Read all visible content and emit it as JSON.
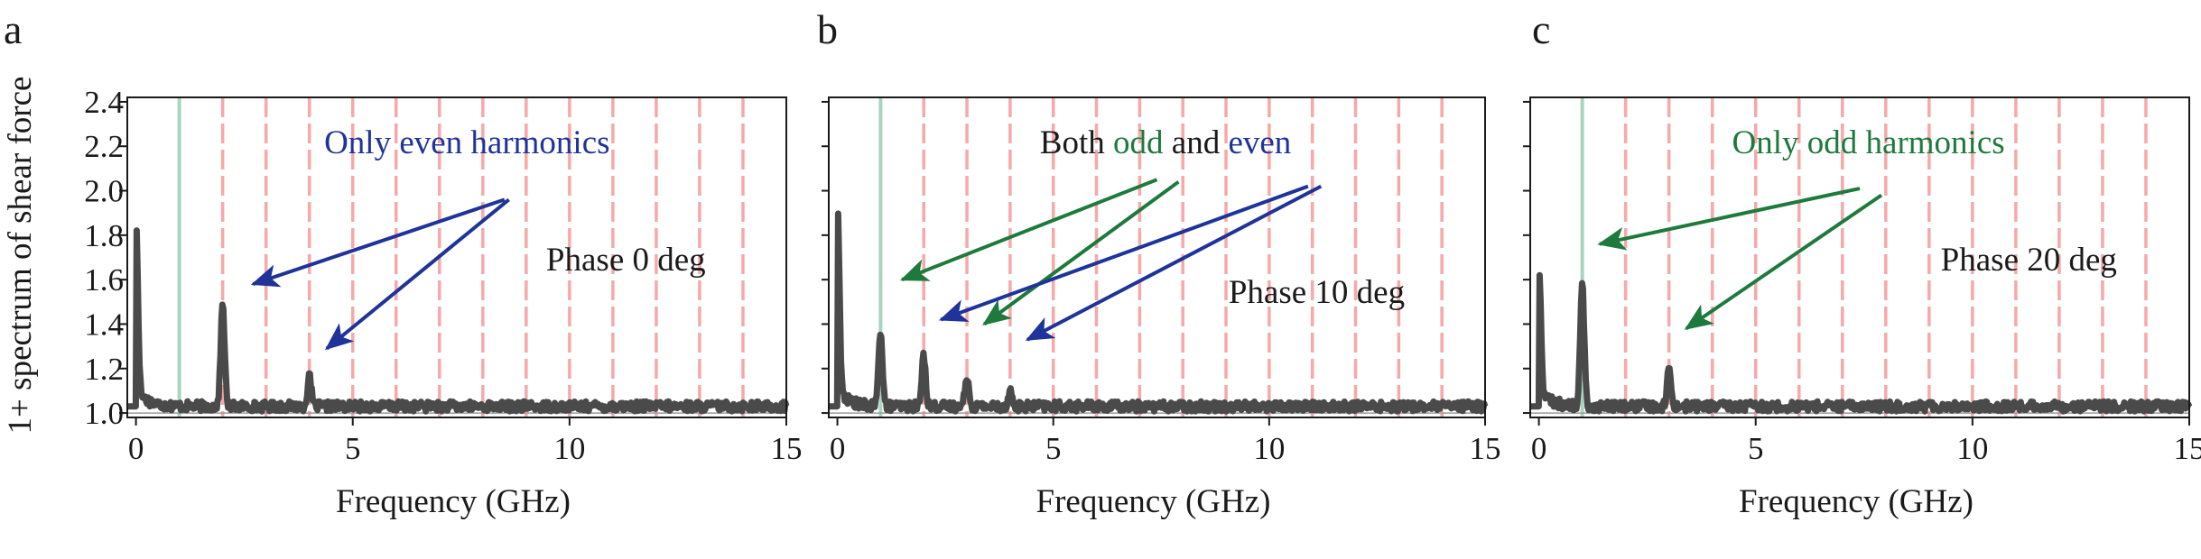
{
  "figure": {
    "y_axis_title": "1+ spectrum of shear force",
    "harmonic_line_color": "#f7a8a8",
    "fundamental_line_color": "#a9d4c0",
    "spectrum_color": "#4a4a4a",
    "odd_color": "#1e7a3c",
    "even_color": "#1f3399",
    "text_color": "#1a1a1a"
  },
  "chart_data": [
    {
      "type": "line",
      "panel": "a",
      "xlabel": "Frequency (GHz)",
      "ylabel": "1+ spectrum of shear force",
      "xlim": [
        -0.2,
        15
      ],
      "ylim": [
        0.98,
        2.42
      ],
      "xticks": [
        0,
        5,
        10,
        15
      ],
      "yticks": [
        1.0,
        1.2,
        1.4,
        1.6,
        1.8,
        2.0,
        2.2,
        2.4
      ],
      "ytick_labels": [
        "1.0",
        "1.2",
        "1.4",
        "1.6",
        "1.8",
        "2.0",
        "2.2",
        "2.4"
      ],
      "harmonic_lines": [
        2,
        3,
        4,
        5,
        6,
        7,
        8,
        9,
        10,
        11,
        12,
        13,
        14
      ],
      "fundamental_line": 1,
      "baseline": 1.03,
      "peaks": [
        {
          "f": 0.0,
          "amp": 1.8
        },
        {
          "f": 2.0,
          "amp": 1.49
        },
        {
          "f": 4.0,
          "amp": 1.16
        }
      ],
      "annotation": {
        "parts": [
          {
            "text": "Only even harmonics",
            "color": "#1f3399"
          }
        ]
      },
      "phase_label": "Phase 0 deg",
      "arrows": [
        {
          "color": "#1f3399",
          "from": [
            8.5,
            1.96
          ],
          "to": [
            2.7,
            1.58
          ]
        },
        {
          "color": "#1f3399",
          "from": [
            8.6,
            1.96
          ],
          "to": [
            4.4,
            1.29
          ]
        }
      ]
    },
    {
      "type": "line",
      "panel": "b",
      "xlabel": "Frequency (GHz)",
      "ylabel": "",
      "xlim": [
        -0.2,
        15
      ],
      "ylim": [
        0.98,
        2.42
      ],
      "xticks": [
        0,
        5,
        10,
        15
      ],
      "yticks": [],
      "ytick_labels": [],
      "harmonic_lines": [
        2,
        3,
        4,
        5,
        6,
        7,
        8,
        9,
        10,
        11,
        12,
        13,
        14
      ],
      "fundamental_line": 1,
      "baseline": 1.03,
      "peaks": [
        {
          "f": 0.0,
          "amp": 1.89
        },
        {
          "f": 1.0,
          "amp": 1.37
        },
        {
          "f": 2.0,
          "amp": 1.26
        },
        {
          "f": 3.0,
          "amp": 1.17
        },
        {
          "f": 4.0,
          "amp": 1.1
        }
      ],
      "annotation": {
        "parts": [
          {
            "text": "Both ",
            "color": "#1a1a1a"
          },
          {
            "text": "odd",
            "color": "#1e7a3c"
          },
          {
            "text": " and ",
            "color": "#1a1a1a"
          },
          {
            "text": "even",
            "color": "#1f3399"
          }
        ]
      },
      "phase_label": "Phase 10 deg",
      "arrows": [
        {
          "color": "#1e7a3c",
          "from": [
            7.4,
            2.05
          ],
          "to": [
            1.5,
            1.6
          ]
        },
        {
          "color": "#1e7a3c",
          "from": [
            7.9,
            2.04
          ],
          "to": [
            3.4,
            1.4
          ]
        },
        {
          "color": "#1f3399",
          "from": [
            10.9,
            2.02
          ],
          "to": [
            2.4,
            1.42
          ]
        },
        {
          "color": "#1f3399",
          "from": [
            11.2,
            2.02
          ],
          "to": [
            4.4,
            1.33
          ]
        }
      ]
    },
    {
      "type": "line",
      "panel": "c",
      "xlabel": "Frequency (GHz)",
      "ylabel": "",
      "xlim": [
        -0.2,
        15
      ],
      "ylim": [
        0.98,
        2.42
      ],
      "xticks": [
        0,
        5,
        10,
        15
      ],
      "yticks": [],
      "ytick_labels": [],
      "harmonic_lines": [
        2,
        3,
        4,
        5,
        6,
        7,
        8,
        9,
        10,
        11,
        12,
        13,
        14
      ],
      "fundamental_line": 1,
      "baseline": 1.03,
      "peaks": [
        {
          "f": 0.0,
          "amp": 1.6
        },
        {
          "f": 1.0,
          "amp": 1.58
        },
        {
          "f": 3.0,
          "amp": 1.2
        }
      ],
      "annotation": {
        "parts": [
          {
            "text": "Only odd harmonics",
            "color": "#1e7a3c"
          }
        ]
      },
      "phase_label": "Phase 20 deg",
      "arrows": [
        {
          "color": "#1e7a3c",
          "from": [
            7.4,
            2.01
          ],
          "to": [
            1.4,
            1.76
          ]
        },
        {
          "color": "#1e7a3c",
          "from": [
            7.9,
            1.98
          ],
          "to": [
            3.4,
            1.38
          ]
        }
      ]
    }
  ]
}
